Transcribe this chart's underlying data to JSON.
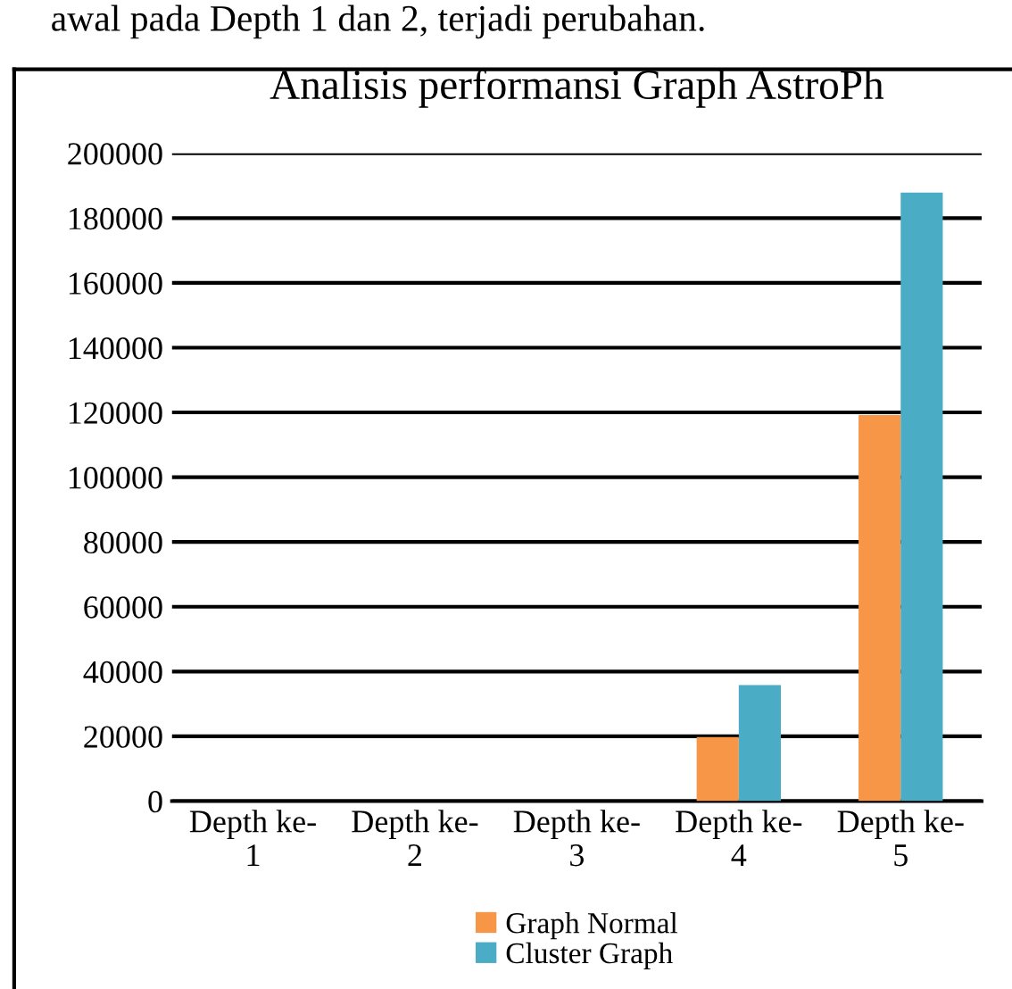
{
  "chart_data": {
    "type": "bar",
    "title": "Analisis performansi Graph AstroPh",
    "categories": [
      "Depth ke-\n1",
      "Depth ke-\n2",
      "Depth ke-\n3",
      "Depth ke-\n4",
      "Depth ke-\n5"
    ],
    "series": [
      {
        "name": "Graph Normal",
        "color": "#f79646",
        "values": [
          0,
          0,
          0,
          19800,
          119200
        ]
      },
      {
        "name": "Cluster Graph",
        "color": "#4bacc6",
        "values": [
          0,
          0,
          0,
          35800,
          187900
        ]
      }
    ],
    "ylim": [
      0,
      200000
    ],
    "yticks": [
      0,
      20000,
      40000,
      60000,
      80000,
      100000,
      120000,
      140000,
      160000,
      180000,
      200000
    ],
    "grid": "y",
    "legend": "bottom",
    "annotations": [
      "awal pada Depth 1 dan 2, terjadi perubahan."
    ]
  }
}
